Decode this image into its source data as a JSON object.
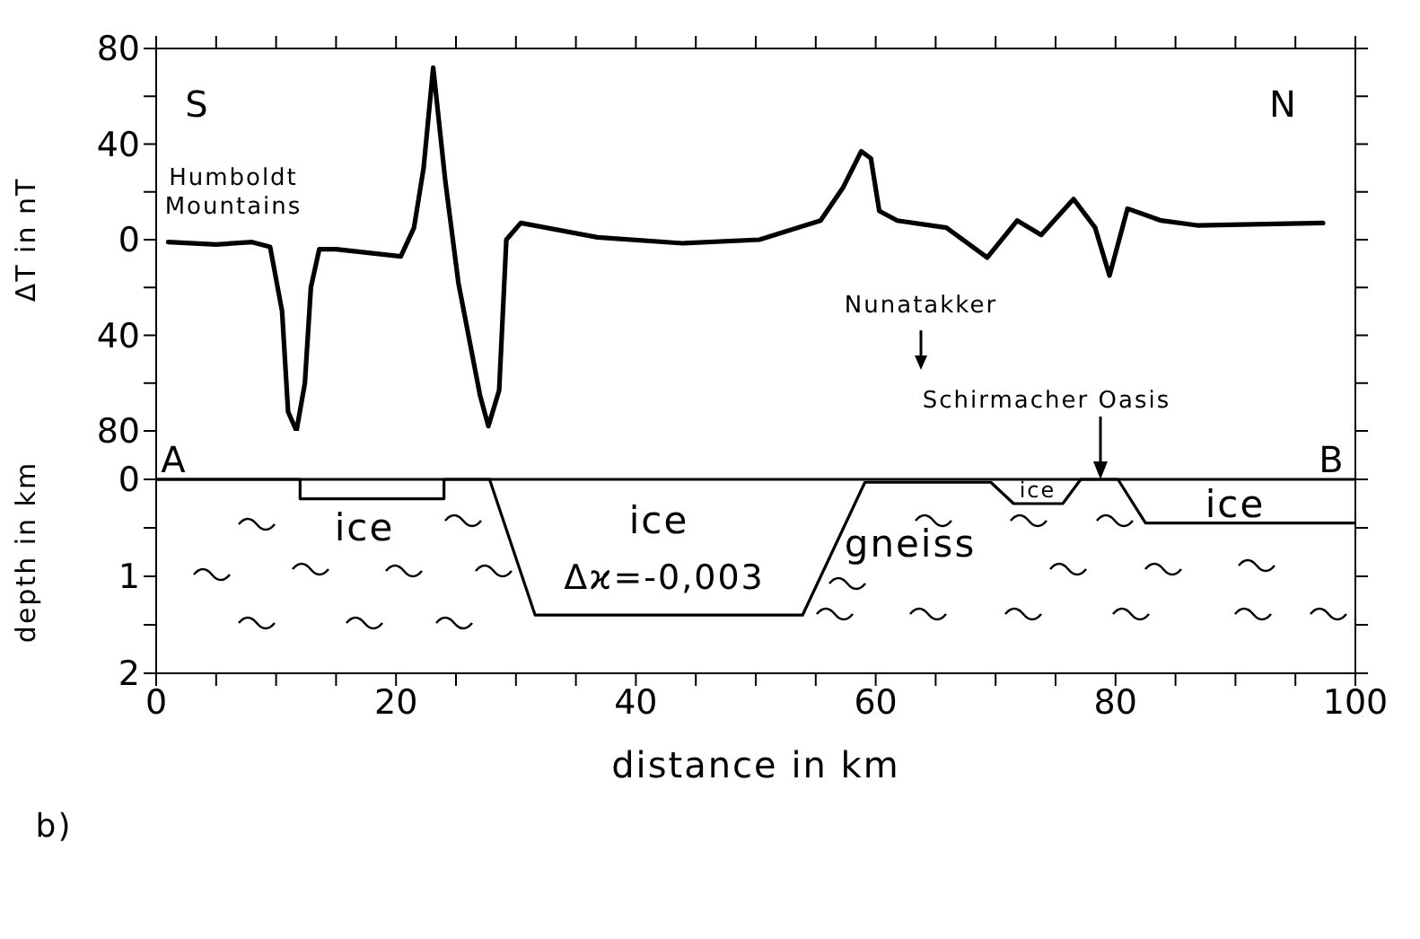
{
  "chart_data": [
    {
      "type": "line",
      "ylabel": "ΔT in nT",
      "xlim": [
        0,
        100
      ],
      "xticks": [
        {
          "value": 0,
          "label": null
        },
        {
          "value": 5,
          "label": null
        },
        {
          "value": 10,
          "label": null
        },
        {
          "value": 15,
          "label": null
        },
        {
          "value": 20,
          "label": null
        },
        {
          "value": 25,
          "label": null
        },
        {
          "value": 30,
          "label": null
        },
        {
          "value": 35,
          "label": null
        },
        {
          "value": 40,
          "label": null
        },
        {
          "value": 45,
          "label": null
        },
        {
          "value": 50,
          "label": null
        },
        {
          "value": 55,
          "label": null
        },
        {
          "value": 60,
          "label": null
        },
        {
          "value": 65,
          "label": null
        },
        {
          "value": 70,
          "label": null
        },
        {
          "value": 75,
          "label": null
        },
        {
          "value": 80,
          "label": null
        },
        {
          "value": 85,
          "label": null
        },
        {
          "value": 90,
          "label": null
        },
        {
          "value": 95,
          "label": null
        },
        {
          "value": 100,
          "label": null
        }
      ],
      "ylim": [
        -80,
        80
      ],
      "yticks": [
        {
          "value": -80,
          "label": "80"
        },
        {
          "value": -60,
          "label": null
        },
        {
          "value": -40,
          "label": "40"
        },
        {
          "value": -20,
          "label": null
        },
        0,
        {
          "value": 20,
          "label": null
        },
        40,
        {
          "value": 60,
          "label": null
        },
        80
      ],
      "tick_labels": "y",
      "series": [
        {
          "color": "#000000",
          "x": [
            1,
            5,
            8,
            9.5,
            10.5,
            11,
            11.7,
            12.4,
            12.9,
            13.6,
            15,
            20.4,
            21.5,
            22.3,
            23.1,
            24.1,
            25.2,
            27,
            27.7,
            28.6,
            29.2,
            30.4,
            36.8,
            43.9,
            50.3,
            55.4,
            57.3,
            58.8,
            59.6,
            60.3,
            61.8,
            65.9,
            69.3,
            71.8,
            73.8,
            76.5,
            78.3,
            79.5,
            81,
            83.8,
            86.8,
            97.3
          ],
          "values": [
            -1,
            -2,
            -1,
            -3,
            -30,
            -72,
            -80,
            -60,
            -20,
            -4,
            -4,
            -7,
            5,
            30,
            72,
            25,
            -18,
            -65,
            -78,
            -63,
            0,
            7,
            1,
            -1.5,
            0,
            8,
            22,
            37,
            34,
            12,
            8,
            5,
            -7.5,
            8,
            2,
            17,
            5,
            -15,
            13,
            8,
            6,
            7
          ]
        }
      ],
      "annotations": [
        "S",
        "N",
        "Humboldt\nMountains",
        "Nunatakker",
        "Schirmacher Oasis"
      ]
    },
    {
      "type": "line",
      "xlabel": "distance in km",
      "ylabel": "depth in km",
      "xlim": [
        0,
        100
      ],
      "xticks": [
        0,
        {
          "value": 5,
          "label": null
        },
        {
          "value": 10,
          "label": null
        },
        {
          "value": 15,
          "label": null
        },
        20,
        {
          "value": 25,
          "label": null
        },
        {
          "value": 30,
          "label": null
        },
        {
          "value": 35,
          "label": null
        },
        40,
        {
          "value": 45,
          "label": null
        },
        {
          "value": 50,
          "label": null
        },
        {
          "value": 55,
          "label": null
        },
        60,
        {
          "value": 65,
          "label": null
        },
        {
          "value": 70,
          "label": null
        },
        {
          "value": 75,
          "label": null
        },
        80,
        {
          "value": 85,
          "label": null
        },
        {
          "value": 90,
          "label": null
        },
        {
          "value": 95,
          "label": null
        },
        100
      ],
      "ylim": [
        2,
        -0.5
      ],
      "yticks": [
        0,
        {
          "value": 0.5,
          "label": null
        },
        1,
        {
          "value": 1.5,
          "label": null
        },
        2
      ],
      "series": [
        {
          "color": "#000000",
          "x": [
            0,
            12,
            12,
            24,
            24,
            27.8,
            31.6,
            53.9,
            59.1,
            69.6,
            71.5,
            75.6,
            77.1,
            80.2,
            82.5,
            100
          ],
          "values": [
            0,
            0,
            0.2,
            0.2,
            0,
            0,
            1.4,
            1.4,
            0.03,
            0.03,
            0.25,
            0.25,
            0,
            0,
            0.45,
            0.45
          ]
        }
      ],
      "ref_lines": [
        {
          "axis": "y",
          "value": 0,
          "color": "#000000"
        }
      ],
      "annotations": [
        "A",
        "B",
        "ice",
        "ice",
        "Δϰ=-0,003",
        "gneiss",
        "ice",
        "ice",
        "b)"
      ]
    }
  ]
}
